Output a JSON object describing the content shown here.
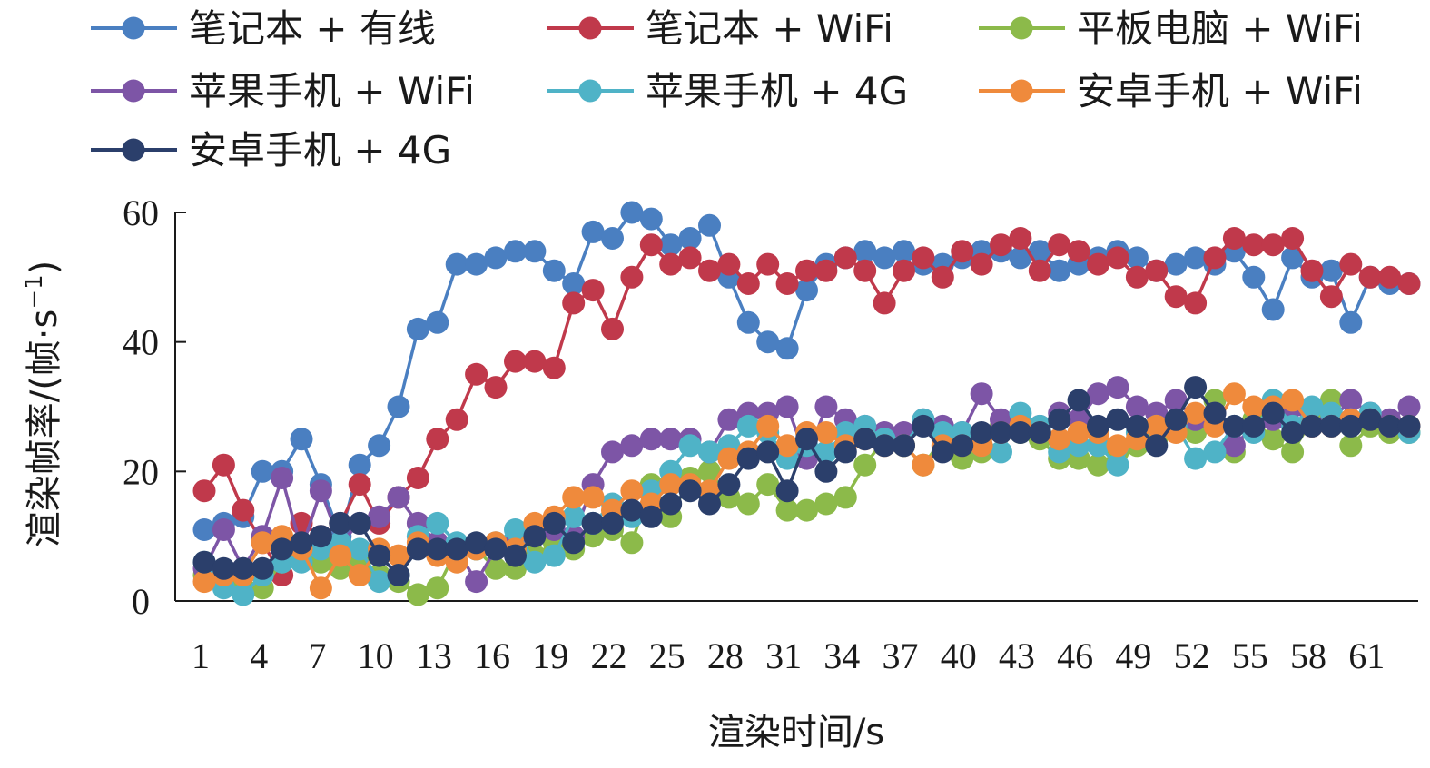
{
  "chart_data": {
    "type": "line",
    "title": "",
    "xlabel": "渲染时间/s",
    "ylabel": "渲染帧率/(帧·s",
    "ylabel_sup": "−1",
    "ylabel_close": ")",
    "ylim": [
      0,
      60
    ],
    "yticks": [
      0,
      20,
      40,
      60
    ],
    "xlim": [
      1,
      63
    ],
    "xticks": [
      1,
      4,
      7,
      10,
      13,
      16,
      19,
      22,
      25,
      28,
      31,
      34,
      37,
      40,
      43,
      46,
      49,
      52,
      55,
      58,
      61
    ],
    "grid": false,
    "legend_position": "top",
    "x": [
      1,
      2,
      3,
      4,
      5,
      6,
      7,
      8,
      9,
      10,
      11,
      12,
      13,
      14,
      15,
      16,
      17,
      18,
      19,
      20,
      21,
      22,
      23,
      24,
      25,
      26,
      27,
      28,
      29,
      30,
      31,
      32,
      33,
      34,
      35,
      36,
      37,
      38,
      39,
      40,
      41,
      42,
      43,
      44,
      45,
      46,
      47,
      48,
      49,
      50,
      51,
      52,
      53,
      54,
      55,
      56,
      57,
      58,
      59,
      60,
      61,
      62,
      63
    ],
    "series": [
      {
        "name": "笔记本 + 有线",
        "color": "#4a7fc1",
        "values": [
          11,
          12,
          13,
          20,
          20,
          25,
          18,
          10,
          21,
          24,
          30,
          42,
          43,
          52,
          52,
          53,
          54,
          54,
          51,
          49,
          57,
          56,
          60,
          59,
          55,
          56,
          58,
          50,
          43,
          40,
          39,
          48,
          52,
          53,
          54,
          53,
          54,
          52,
          52,
          53,
          54,
          54,
          53,
          54,
          51,
          52,
          53,
          54,
          53,
          51,
          52,
          53,
          52,
          54,
          50,
          45,
          53,
          50,
          51,
          43,
          50,
          49,
          49
        ]
      },
      {
        "name": "笔记本 + WiFi",
        "color": "#c0394b",
        "values": [
          17,
          21,
          14,
          9,
          4,
          12,
          10,
          12,
          18,
          12,
          16,
          19,
          25,
          28,
          35,
          33,
          37,
          37,
          36,
          46,
          48,
          42,
          50,
          55,
          52,
          53,
          51,
          52,
          49,
          52,
          49,
          51,
          51,
          53,
          51,
          46,
          51,
          53,
          50,
          54,
          52,
          55,
          56,
          51,
          55,
          54,
          52,
          53,
          50,
          51,
          47,
          46,
          53,
          56,
          55,
          55,
          56,
          51,
          47,
          52,
          50,
          50,
          49
        ]
      },
      {
        "name": "平板电脑 + WiFi",
        "color": "#8cba4a",
        "values": [
          4,
          3,
          2,
          2,
          6,
          7,
          6,
          5,
          6,
          4,
          3,
          1,
          2,
          8,
          8,
          5,
          5,
          7,
          9,
          8,
          10,
          11,
          9,
          18,
          13,
          19,
          20,
          16,
          15,
          18,
          14,
          14,
          15,
          16,
          21,
          25,
          24,
          21,
          25,
          22,
          23,
          27,
          26,
          25,
          22,
          22,
          21,
          23,
          24,
          25,
          27,
          26,
          31,
          23,
          28,
          25,
          23,
          28,
          31,
          24,
          27,
          26,
          26
        ]
      },
      {
        "name": "苹果手机 + WiFi",
        "color": "#7d55a6",
        "values": [
          5,
          11,
          5,
          10,
          19,
          8,
          17,
          9,
          12,
          13,
          16,
          12,
          9,
          8,
          3,
          8,
          9,
          11,
          11,
          10,
          18,
          23,
          24,
          25,
          25,
          25,
          23,
          28,
          29,
          29,
          30,
          22,
          30,
          28,
          27,
          26,
          26,
          28,
          27,
          26,
          32,
          28,
          27,
          27,
          29,
          28,
          32,
          33,
          30,
          29,
          31,
          28,
          29,
          24,
          27,
          28,
          30,
          27,
          28,
          31,
          29,
          28,
          30
        ]
      },
      {
        "name": "苹果手机 + 4G",
        "color": "#4fb3c7",
        "values": [
          6,
          2,
          1,
          4,
          6,
          6,
          8,
          9,
          8,
          3,
          4,
          10,
          12,
          9,
          8,
          9,
          11,
          6,
          7,
          13,
          12,
          15,
          13,
          17,
          20,
          24,
          23,
          24,
          27,
          26,
          22,
          24,
          23,
          26,
          27,
          25,
          24,
          28,
          26,
          26,
          24,
          23,
          29,
          27,
          23,
          24,
          24,
          21,
          26,
          27,
          27,
          22,
          23,
          27,
          26,
          31,
          27,
          30,
          29,
          28,
          29,
          27,
          26
        ]
      },
      {
        "name": "安卓手机 + WiFi",
        "color": "#ef8a3c",
        "values": [
          3,
          4,
          4,
          9,
          10,
          8,
          2,
          7,
          4,
          8,
          7,
          9,
          7,
          6,
          8,
          9,
          8,
          12,
          13,
          16,
          16,
          14,
          17,
          15,
          18,
          18,
          17,
          22,
          23,
          27,
          24,
          26,
          26,
          24,
          25,
          24,
          24,
          21,
          24,
          24,
          24,
          26,
          27,
          26,
          25,
          26,
          26,
          24,
          25,
          27,
          26,
          29,
          27,
          32,
          30,
          30,
          31,
          27,
          27,
          28,
          28,
          27,
          27
        ]
      },
      {
        "name": "安卓手机 + 4G",
        "color": "#2b3f6b",
        "values": [
          6,
          5,
          5,
          5,
          8,
          9,
          10,
          12,
          12,
          7,
          4,
          8,
          8,
          8,
          9,
          8,
          7,
          10,
          12,
          9,
          12,
          12,
          14,
          13,
          15,
          17,
          15,
          18,
          22,
          23,
          17,
          25,
          20,
          23,
          25,
          24,
          24,
          27,
          23,
          24,
          26,
          26,
          26,
          26,
          28,
          31,
          27,
          28,
          27,
          24,
          28,
          33,
          29,
          27,
          27,
          29,
          26,
          27,
          27,
          27,
          28,
          27,
          27
        ]
      }
    ]
  }
}
